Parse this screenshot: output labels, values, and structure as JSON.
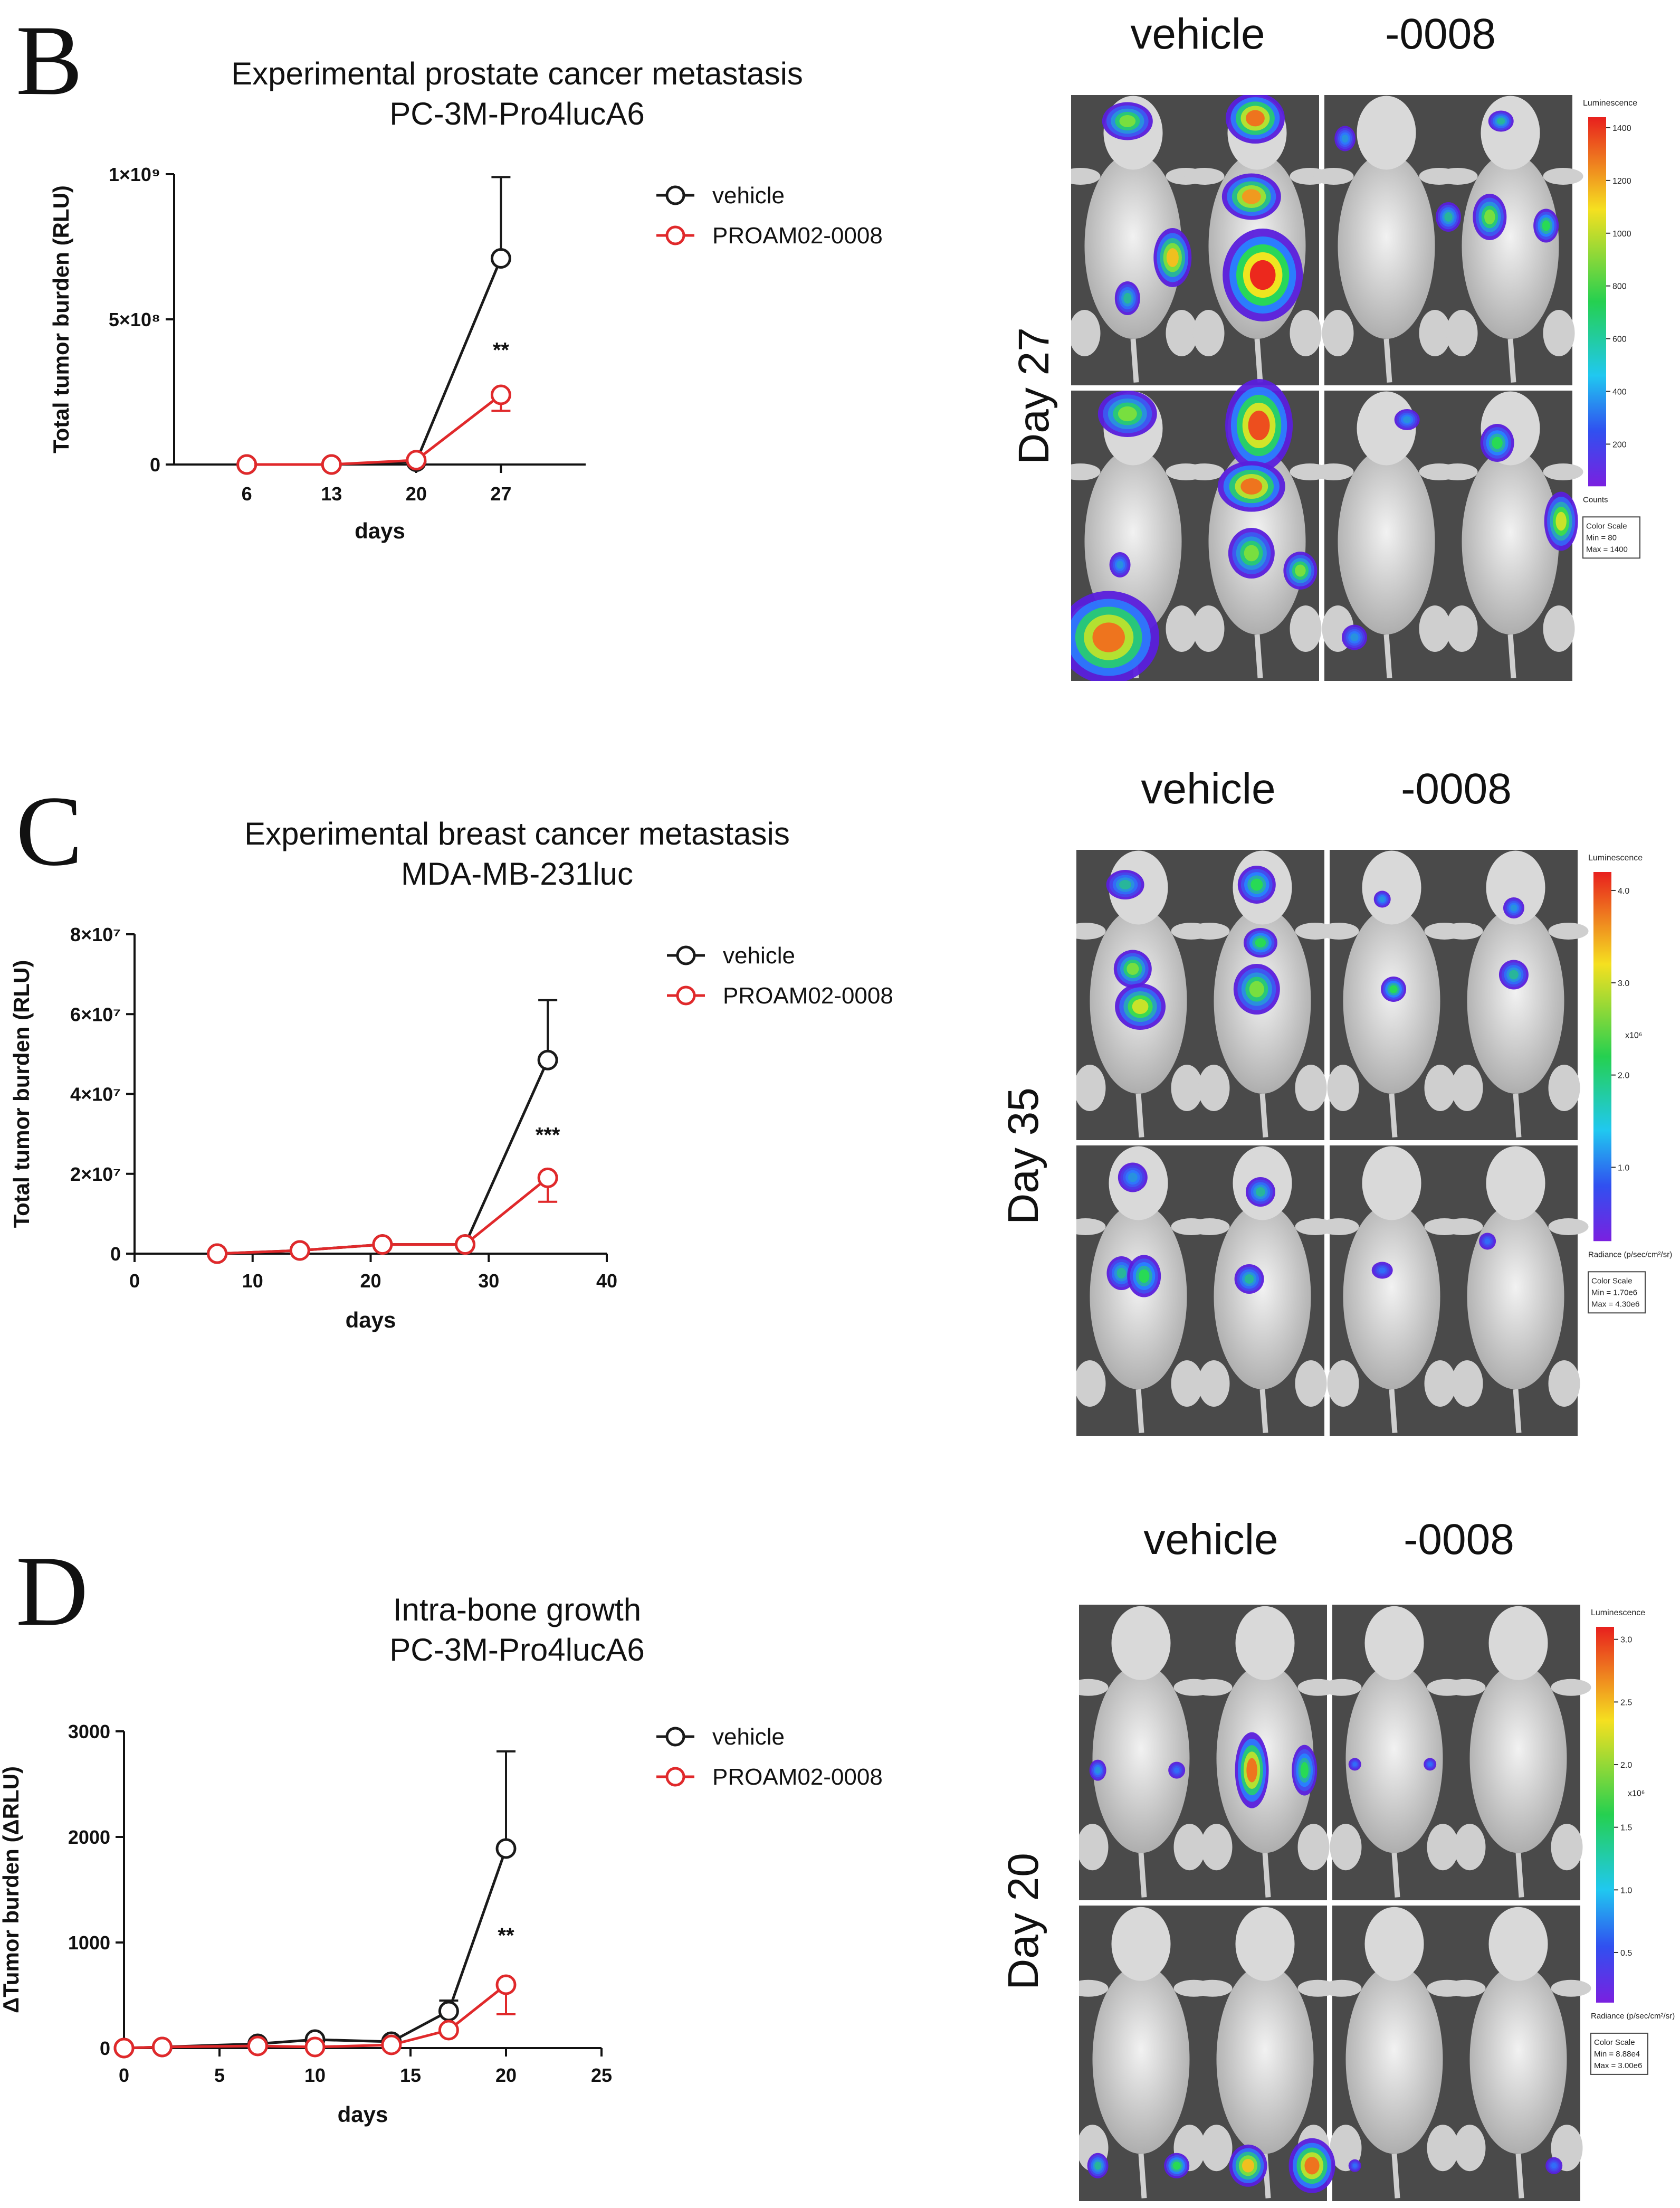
{
  "chart_data": [
    {
      "panel_label": "B",
      "type": "line",
      "title": "Experimental prostate cancer metastasis",
      "subtitle": "PC-3M-Pro4lucA6",
      "xlabel": "days",
      "ylabel": "Total tumor burden (RLU)",
      "x": [
        6,
        13,
        20,
        27
      ],
      "x_ticks": [
        "6",
        "13",
        "20",
        "27"
      ],
      "xlim": [
        0,
        34
      ],
      "ylim": [
        0,
        1000000000
      ],
      "y_ticks": [
        0,
        500000000,
        1000000000
      ],
      "y_tick_labels": [
        "0",
        "5×10⁸",
        "1×10⁹"
      ],
      "series": [
        {
          "name": "vehicle",
          "color": "#1a1a1a",
          "values": [
            0,
            0,
            10000000,
            710000000
          ],
          "err": [
            0,
            0,
            5000000,
            280000000
          ]
        },
        {
          "name": "PROAM02-0008",
          "color": "#e0292b",
          "values": [
            0,
            0,
            15000000,
            240000000
          ],
          "err": [
            0,
            0,
            5000000,
            55000000
          ],
          "err_down": true
        }
      ],
      "annotations": [
        {
          "x": 27,
          "y": 370000000,
          "text": "**"
        }
      ]
    },
    {
      "panel_label": "C",
      "type": "line",
      "title": "Experimental breast cancer metastasis",
      "subtitle": "MDA-MB-231luc",
      "xlabel": "days",
      "ylabel": "Total tumor burden (RLU)",
      "x": [
        7,
        14,
        21,
        28,
        35
      ],
      "x_ticks": [
        "0",
        "10",
        "20",
        "30",
        "40"
      ],
      "x_tick_values": [
        0,
        10,
        20,
        30,
        40
      ],
      "xlim": [
        0,
        40
      ],
      "ylim": [
        0,
        80000000
      ],
      "y_ticks": [
        0,
        20000000,
        40000000,
        60000000,
        80000000
      ],
      "y_tick_labels": [
        "0",
        "2×10⁷",
        "4×10⁷",
        "6×10⁷",
        "8×10⁷"
      ],
      "series": [
        {
          "name": "vehicle",
          "color": "#1a1a1a",
          "values": [
            0,
            800000,
            2300000,
            2300000,
            48500000
          ],
          "err": [
            0,
            200000,
            300000,
            300000,
            15000000
          ]
        },
        {
          "name": "PROAM02-0008",
          "color": "#e0292b",
          "values": [
            0,
            800000,
            2300000,
            2300000,
            19000000
          ],
          "err": [
            0,
            200000,
            300000,
            300000,
            6000000
          ],
          "err_down": true
        }
      ],
      "annotations": [
        {
          "x": 35,
          "y": 28000000,
          "text": "***"
        }
      ]
    },
    {
      "panel_label": "D",
      "type": "line",
      "title": "Intra-bone growth",
      "subtitle": "PC-3M-Pro4lucA6",
      "xlabel": "days",
      "ylabel": "ΔTumor burden (ΔRLU)",
      "x_v": [
        0,
        2,
        7,
        10,
        14,
        17,
        20
      ],
      "x_p": [
        0,
        2,
        7,
        10,
        14,
        17,
        20
      ],
      "x_ticks": [
        "0",
        "5",
        "10",
        "15",
        "20",
        "25"
      ],
      "x_tick_values": [
        0,
        5,
        10,
        15,
        20,
        25
      ],
      "xlim": [
        0,
        25
      ],
      "ylim": [
        0,
        3000
      ],
      "y_ticks": [
        0,
        1000,
        2000,
        3000
      ],
      "y_tick_labels": [
        "0",
        "1000",
        "2000",
        "3000"
      ],
      "series": [
        {
          "name": "vehicle",
          "color": "#1a1a1a",
          "values": [
            0,
            10,
            40,
            80,
            60,
            350,
            1890
          ],
          "err": [
            0,
            5,
            20,
            30,
            20,
            100,
            920
          ]
        },
        {
          "name": "PROAM02-0008",
          "color": "#e0292b",
          "values": [
            0,
            10,
            20,
            10,
            30,
            170,
            600
          ],
          "err": [
            0,
            5,
            10,
            10,
            15,
            80,
            280
          ],
          "err_down": true
        }
      ],
      "annotations": [
        {
          "x": 20,
          "y": 1000,
          "text": "**"
        }
      ]
    }
  ],
  "images": [
    {
      "panel": "B",
      "day_label": "Day 27",
      "col1": "vehicle",
      "col2": "-0008",
      "scale_title": "Luminescence",
      "scale_ticks": [
        "1400",
        "1200",
        "1000",
        "800",
        "600",
        "400",
        "200"
      ],
      "scale_unit": "Counts",
      "scale_box": [
        "Color Scale",
        "Min = 80",
        "Max = 1400"
      ]
    },
    {
      "panel": "C",
      "day_label": "Day 35",
      "col1": "vehicle",
      "col2": "-0008",
      "scale_title": "Luminescence",
      "scale_ticks": [
        "4.0",
        "3.0",
        "2.0",
        "1.0"
      ],
      "scale_exp": "x10⁶",
      "scale_unit": "Radiance (p/sec/cm²/sr)",
      "scale_box": [
        "Color Scale",
        "Min = 1.70e6",
        "Max = 4.30e6"
      ]
    },
    {
      "panel": "D",
      "day_label": "Day 20",
      "col1": "vehicle",
      "col2": "-0008",
      "scale_title": "Luminescence",
      "scale_ticks": [
        "3.0",
        "2.5",
        "2.0",
        "1.5",
        "1.0",
        "0.5"
      ],
      "scale_exp": "x10⁶",
      "scale_unit": "Radiance (p/sec/cm²/sr)",
      "scale_box": [
        "Color Scale",
        "Min = 8.88e4",
        "Max = 3.00e6"
      ]
    }
  ]
}
